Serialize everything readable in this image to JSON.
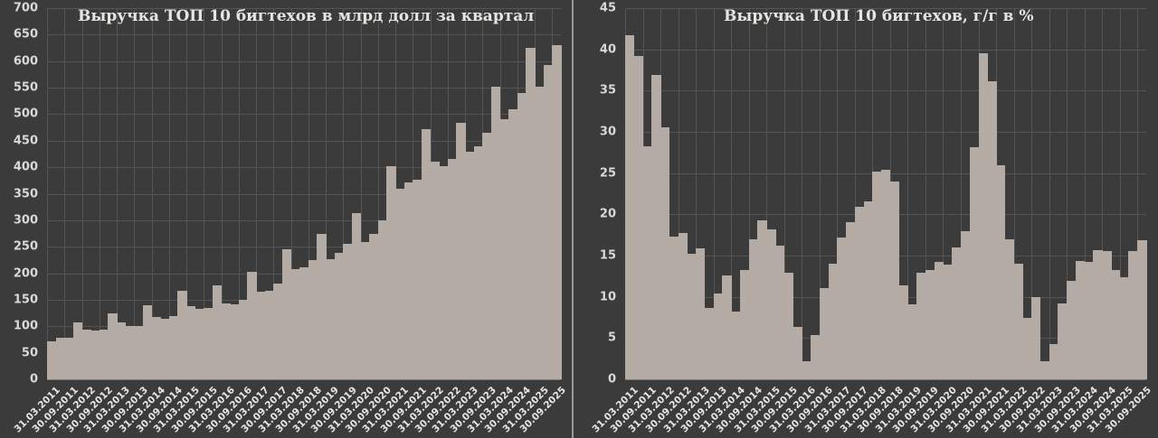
{
  "chart_data": [
    {
      "type": "bar",
      "title": "Выручка ТОП 10 бигтехов в млрд долл за квартал",
      "xlabel": "",
      "ylabel": "",
      "ylim": [
        0,
        700
      ],
      "yticks": [
        0,
        50,
        100,
        150,
        200,
        250,
        300,
        350,
        400,
        450,
        500,
        550,
        600,
        650,
        700
      ],
      "grid": true,
      "legend": null,
      "bar_color": "#b5aba5",
      "x_tick_labels": [
        "31.03.2011",
        "30.09.2011",
        "31.03.2012",
        "30.09.2012",
        "31.03.2013",
        "30.09.2013",
        "31.03.2014",
        "30.09.2014",
        "31.03.2015",
        "30.09.2015",
        "31.03.2016",
        "30.09.2016",
        "31.03.2017",
        "30.09.2017",
        "31.03.2018",
        "30.09.2018",
        "31.03.2019",
        "30.09.2019",
        "31.03.2020",
        "30.09.2020",
        "31.03.2021",
        "30.09.2021",
        "31.03.2022",
        "30.09.2022",
        "31.03.2023",
        "30.09.2023",
        "31.03.2024",
        "30.09.2024",
        "31.03.2025",
        "30.09.2025"
      ],
      "values": [
        72,
        78,
        78,
        108,
        94,
        92,
        93,
        125,
        108,
        100,
        101,
        140,
        117,
        114,
        120,
        167,
        138,
        133,
        135,
        178,
        143,
        141,
        150,
        203,
        165,
        167,
        180,
        246,
        208,
        212,
        224,
        274,
        226,
        238,
        255,
        313,
        259,
        275,
        300,
        402,
        360,
        372,
        376,
        472,
        410,
        402,
        415,
        483,
        430,
        440,
        465,
        552,
        490,
        510,
        540,
        625,
        552,
        592,
        630
      ]
    },
    {
      "type": "bar",
      "title": "Выручка ТОП 10 бигтехов, г/г в %",
      "xlabel": "",
      "ylabel": "",
      "ylim": [
        0,
        45
      ],
      "yticks": [
        0,
        5,
        10,
        15,
        20,
        25,
        30,
        35,
        40,
        45
      ],
      "grid": true,
      "legend": null,
      "bar_color": "#b5aba5",
      "x_tick_labels": [
        "31.03.2011",
        "30.09.2011",
        "31.03.2012",
        "30.09.2012",
        "31.03.2013",
        "30.09.2013",
        "31.03.2014",
        "30.09.2014",
        "31.03.2015",
        "30.09.2015",
        "31.03.2016",
        "30.09.2016",
        "31.03.2017",
        "30.09.2017",
        "31.03.2018",
        "30.09.2018",
        "31.03.2019",
        "30.09.2019",
        "31.03.2020",
        "30.09.2020",
        "31.03.2021",
        "30.09.2021",
        "31.03.2022",
        "30.09.2022",
        "31.03.2023",
        "30.09.2023",
        "31.03.2024",
        "30.09.2024",
        "31.03.2025",
        "30.09.2025"
      ],
      "values": [
        41.7,
        39.2,
        28.3,
        36.9,
        30.5,
        17.3,
        17.7,
        15.2,
        15.9,
        8.7,
        10.4,
        12.6,
        8.2,
        13.3,
        17.0,
        19.3,
        18.2,
        16.2,
        12.9,
        6.3,
        2.2,
        5.4,
        11.1,
        14.0,
        17.2,
        19.0,
        20.9,
        21.6,
        25.2,
        25.4,
        24.0,
        11.4,
        9.1,
        12.9,
        13.2,
        14.2,
        13.9,
        16.0,
        18.0,
        28.1,
        39.5,
        36.1,
        26.0,
        17.0,
        14.0,
        7.5,
        10.0,
        2.2,
        4.3,
        9.2,
        11.9,
        14.3,
        14.2,
        15.7,
        15.6,
        13.3,
        12.4,
        15.6,
        16.9
      ]
    }
  ]
}
